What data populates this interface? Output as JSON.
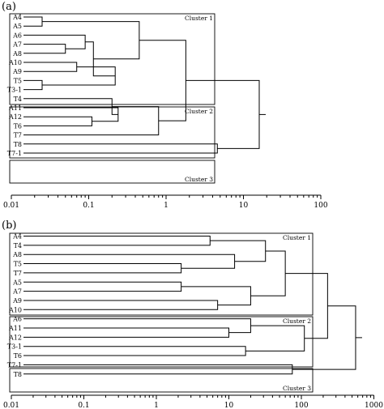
{
  "figure": {
    "panels": [
      {
        "label": "(a)",
        "leaves": [
          "A4",
          "A5",
          "A6",
          "A7",
          "A8",
          "A10",
          "A9",
          "T5",
          "T3-1",
          "T4",
          "A11",
          "A12",
          "T6",
          "T7",
          "T8",
          "T7-1"
        ],
        "merges": [
          {
            "id": "m1",
            "left": "A4",
            "right": "A5",
            "height": 0.025
          },
          {
            "id": "m2",
            "left": "A7",
            "right": "A8",
            "height": 0.05
          },
          {
            "id": "m3",
            "left": "A6",
            "right": "m2",
            "height": 0.09
          },
          {
            "id": "m4",
            "left": "T5",
            "right": "T3-1",
            "height": 0.025
          },
          {
            "id": "m5",
            "left": "A10",
            "right": "A9",
            "height": 0.07
          },
          {
            "id": "m6",
            "left": "m5",
            "right": "m4",
            "height": 0.22
          },
          {
            "id": "m7",
            "left": "m3",
            "right": "m6",
            "height": 0.115
          },
          {
            "id": "m8",
            "left": "m1",
            "right": "m7",
            "height": 0.45
          },
          {
            "id": "m9",
            "left": "A12",
            "right": "T6",
            "height": 0.11
          },
          {
            "id": "m10",
            "left": "A11",
            "right": "m9",
            "height": 0.24
          },
          {
            "id": "m11",
            "left": "T4",
            "right": "m10",
            "height": 0.2
          },
          {
            "id": "m12",
            "left": "m11",
            "right": "T7",
            "height": 0.8
          },
          {
            "id": "m13",
            "left": "m8",
            "right": "m12",
            "height": 1.8
          },
          {
            "id": "m14",
            "left": "T8",
            "right": "T7-1",
            "height": 4.6
          },
          {
            "id": "m15",
            "left": "m13",
            "right": "m14",
            "height": 16
          }
        ],
        "clusters": [
          {
            "label": "Cluster 1",
            "from": 0,
            "to": 8
          },
          {
            "label": "Cluster 2",
            "from": 9,
            "to": 13
          },
          {
            "label": "Cluster 3",
            "from": 14,
            "to": 15
          }
        ],
        "axis": {
          "scale": "log",
          "range": [
            0.01,
            100
          ],
          "tick_labels": [
            "0.01",
            "0.1",
            "1",
            "10",
            "100"
          ]
        }
      },
      {
        "label": "(b)",
        "leaves": [
          "A4",
          "T4",
          "A8",
          "T5",
          "T7",
          "A5",
          "A7",
          "A9",
          "A10",
          "A6",
          "A11",
          "A12",
          "T3-1",
          "T6",
          "T7-1",
          "T8"
        ],
        "merges": [
          {
            "id": "m1",
            "left": "A4",
            "right": "T4",
            "height": 5.5
          },
          {
            "id": "m2",
            "left": "T5",
            "right": "T7",
            "height": 2.2
          },
          {
            "id": "m3",
            "left": "A8",
            "right": "m2",
            "height": 12
          },
          {
            "id": "m4",
            "left": "m1",
            "right": "m3",
            "height": 32
          },
          {
            "id": "m5",
            "left": "A5",
            "right": "A7",
            "height": 2.2
          },
          {
            "id": "m6",
            "left": "A9",
            "right": "A10",
            "height": 7
          },
          {
            "id": "m7",
            "left": "m5",
            "right": "m6",
            "height": 20
          },
          {
            "id": "m8",
            "left": "m4",
            "right": "m7",
            "height": 60
          },
          {
            "id": "m9",
            "left": "A11",
            "right": "A12",
            "height": 10
          },
          {
            "id": "m10",
            "left": "A6",
            "right": "m9",
            "height": 20
          },
          {
            "id": "m11",
            "left": "T3-1",
            "right": "T6",
            "height": 17
          },
          {
            "id": "m12",
            "left": "m10",
            "right": "m11",
            "height": 110
          },
          {
            "id": "m13",
            "left": "m8",
            "right": "m12",
            "height": 230
          },
          {
            "id": "m14",
            "left": "T7-1",
            "right": "T8",
            "height": 75
          },
          {
            "id": "m15",
            "left": "m13",
            "right": "m14",
            "height": 560
          }
        ],
        "clusters": [
          {
            "label": "Cluster 1",
            "from": 0,
            "to": 8
          },
          {
            "label": "Cluster 2",
            "from": 9,
            "to": 13
          },
          {
            "label": "Cluster 3",
            "from": 14,
            "to": 15
          }
        ],
        "axis": {
          "scale": "log",
          "range": [
            0.01,
            1000
          ],
          "tick_labels": [
            "0.01",
            "0.1",
            "1",
            "10",
            "100",
            "1000"
          ]
        }
      }
    ]
  }
}
